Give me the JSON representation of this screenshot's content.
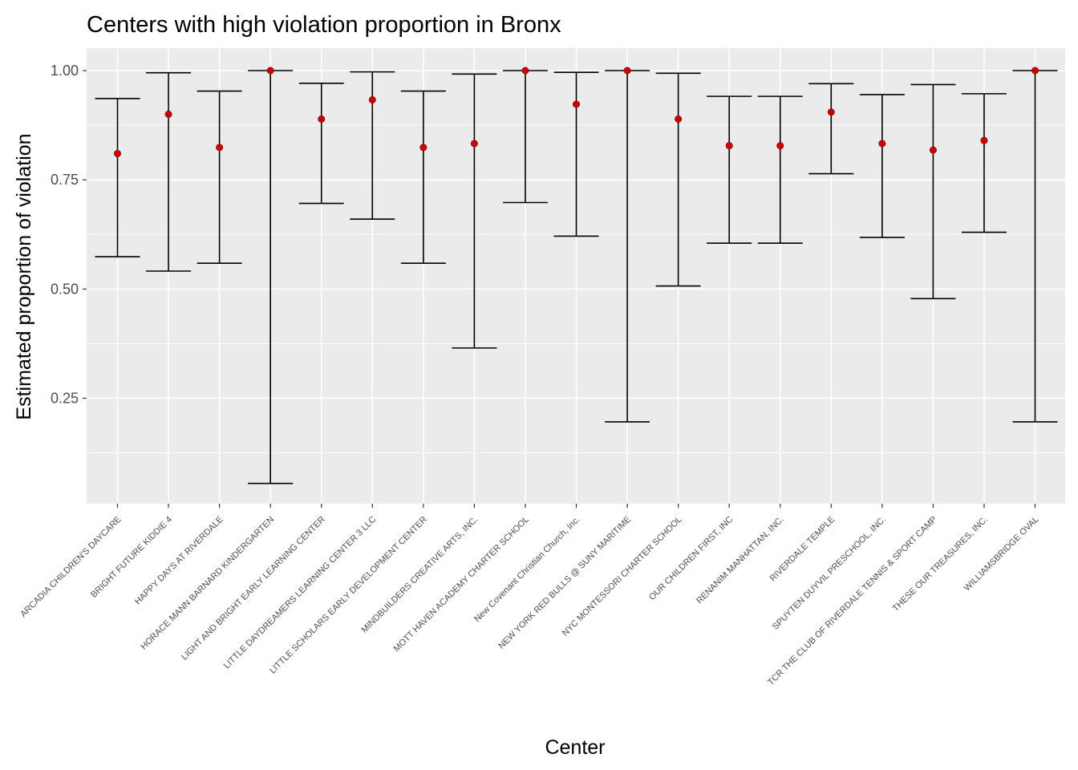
{
  "chart_data": {
    "type": "errorbar",
    "title": "Centers with high violation proportion in Bronx",
    "xlabel": "Center",
    "ylabel": "Estimated proportion of violation",
    "ylim": [
      0.0,
      1.05
    ],
    "yticks": [
      0.25,
      0.5,
      0.75,
      1.0
    ],
    "ytick_labels": [
      "0.25",
      "0.50",
      "0.75",
      "1.00"
    ],
    "grid": true,
    "point_color": "#cc0000",
    "bar_color": "#000000",
    "panel_color": "#ebebeb",
    "categories": [
      "ARCADIA CHILDREN'S  DAYCARE",
      "BRIGHT FUTURE KIDDIE 4",
      "HAPPY DAYS AT RIVERDALE",
      "HORACE MANN BARNARD KINDERGARTEN",
      "LIGHT AND BRIGHT EARLY LEARNING CENTER",
      "LITTLE DAYDREAMERS LEARNING CENTER 3 LLC",
      "LITTLE SCHOLARS EARLY DEVELOPMENT CENTER",
      "MINDBUILDERS CREATIVE ARTS, INC.",
      "MOTT HAVEN ACADEMY CHARTER SCHOOL",
      "New Covenant Christian Church, Inc.",
      "NEW YORK RED BULLS @ SUNY MARITIME",
      "NYC MONTESSORI CHARTER SCHOOL",
      "OUR CHILDREN FIRST, INC",
      "RENANIM MANHATTAN, INC.",
      "RIVERDALE TEMPLE",
      "SPUYTEN DUYVIL PRESCHOOL, INC.",
      "TCR THE CLUB OF RIVERDALE TENNIS & SPORT CAMP",
      "THESE OUR TREASURES, INC.",
      "WILLIAMSBRIDGE OVAL"
    ],
    "estimate": [
      0.81,
      0.9,
      0.824,
      1.0,
      0.889,
      0.933,
      0.824,
      0.833,
      1.0,
      0.923,
      1.0,
      0.889,
      0.828,
      0.828,
      0.905,
      0.833,
      0.818,
      0.84,
      1.0
    ],
    "lower": [
      0.574,
      0.541,
      0.559,
      0.055,
      0.696,
      0.66,
      0.559,
      0.365,
      0.698,
      0.621,
      0.196,
      0.507,
      0.605,
      0.605,
      0.764,
      0.618,
      0.478,
      0.63,
      0.196
    ],
    "upper": [
      0.936,
      0.995,
      0.953,
      1.0,
      0.971,
      0.997,
      0.953,
      0.992,
      1.0,
      0.996,
      1.0,
      0.994,
      0.941,
      0.941,
      0.97,
      0.945,
      0.968,
      0.947,
      1.0
    ]
  }
}
